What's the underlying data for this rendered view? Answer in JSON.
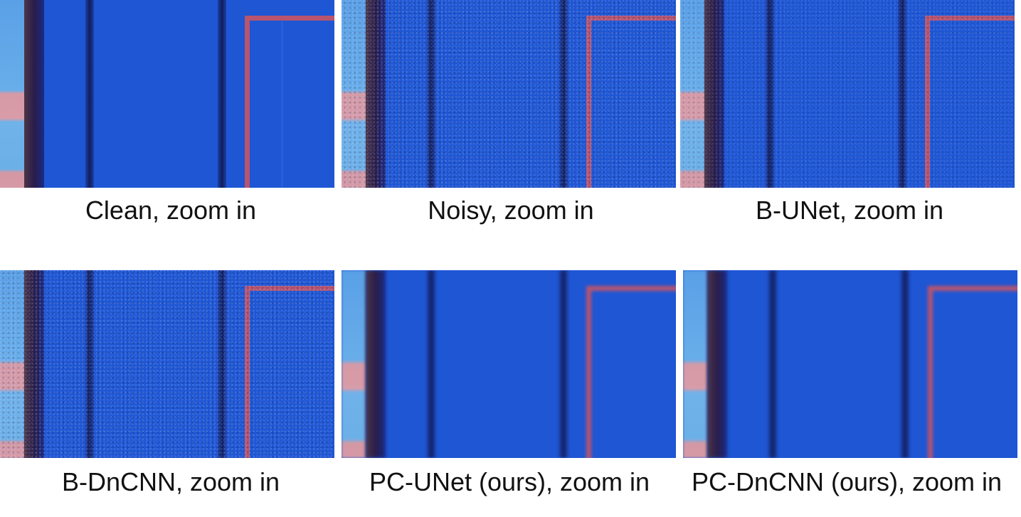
{
  "figure": {
    "panels": [
      {
        "id": "clean",
        "caption": "Clean, zoom in",
        "style": "clean"
      },
      {
        "id": "noisy",
        "caption": "Noisy, zoom in",
        "style": "noisy"
      },
      {
        "id": "b-unet",
        "caption": "B-UNet, zoom in",
        "style": "noisy-light"
      },
      {
        "id": "b-dncnn",
        "caption": "B-DnCNN, zoom in",
        "style": "noisy"
      },
      {
        "id": "pc-unet",
        "caption": "PC-UNet (ours), zoom in",
        "style": "smooth"
      },
      {
        "id": "pc-dncnn",
        "caption": "PC-DnCNN (ours), zoom in",
        "style": "smooth"
      }
    ]
  }
}
